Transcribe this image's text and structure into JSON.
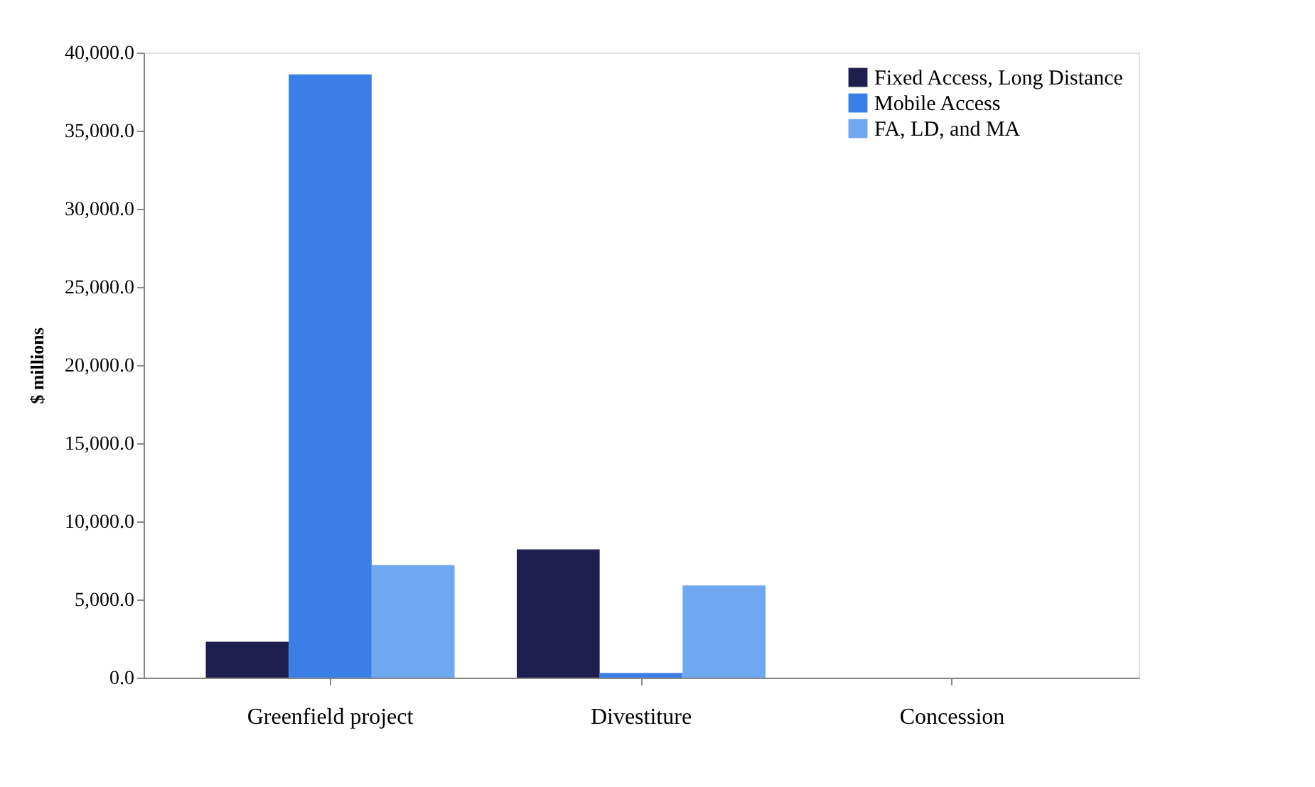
{
  "chart_data": {
    "type": "bar",
    "ylabel": "$ millions",
    "categories": [
      "Greenfield project",
      "Divestiture",
      "Concession"
    ],
    "series": [
      {
        "name": "Fixed Access, Long Distance",
        "color": "#1f1f4f",
        "values": [
          2300,
          8200,
          0
        ]
      },
      {
        "name": "Mobile Access",
        "color": "#3a7ee8",
        "values": [
          38600,
          300,
          0
        ]
      },
      {
        "name": "FA, LD, and MA",
        "color": "#6fa8f0",
        "values": [
          7200,
          5900,
          0
        ]
      }
    ],
    "ylim": [
      0,
      40000
    ],
    "yticks": [
      {
        "value": 0,
        "label": "0.0"
      },
      {
        "value": 5000,
        "label": "5,000.0"
      },
      {
        "value": 10000,
        "label": "10,000.0"
      },
      {
        "value": 15000,
        "label": "15,000.0"
      },
      {
        "value": 20000,
        "label": "20,000.0"
      },
      {
        "value": 25000,
        "label": "25,000.0"
      },
      {
        "value": 30000,
        "label": "30,000.0"
      },
      {
        "value": 35000,
        "label": "35,000.0"
      },
      {
        "value": 40000,
        "label": "40,000.0"
      }
    ],
    "grid": false,
    "legend": "top right"
  }
}
